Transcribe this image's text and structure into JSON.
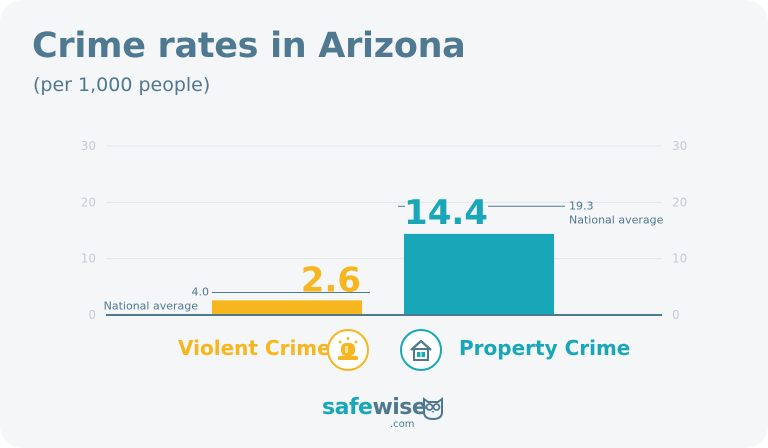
{
  "title": "Crime rates in Arizona",
  "subtitle": "(per 1,000 people)",
  "chart_data": {
    "type": "bar",
    "categories": [
      "Violent Crime",
      "Property Crime"
    ],
    "values": [
      2.6,
      14.4
    ],
    "value_labels": [
      "2.6",
      "14.4"
    ],
    "ylim": [
      0,
      30
    ],
    "yticks": [
      0,
      10,
      20,
      30
    ],
    "ytick_labels": [
      "0",
      "10",
      "20",
      "30"
    ],
    "dual_axis_labels": true,
    "grid": true,
    "colors": [
      "#f7b51e",
      "#17a7b8"
    ],
    "national_average": [
      {
        "value": 4.0,
        "value_label": "4.0",
        "label": "National average"
      },
      {
        "value": 19.3,
        "value_label": "19.3",
        "label": "National average"
      }
    ]
  },
  "legend": {
    "violent": {
      "label": "Violent Crime",
      "icon": "siren-icon",
      "color": "#f7b51e"
    },
    "property": {
      "label": "Property Crime",
      "icon": "house-icon",
      "color": "#17a7b8"
    }
  },
  "brand": {
    "part1": "safe",
    "part2": "wise",
    "suffix": ".com",
    "icon": "owl-icon"
  }
}
